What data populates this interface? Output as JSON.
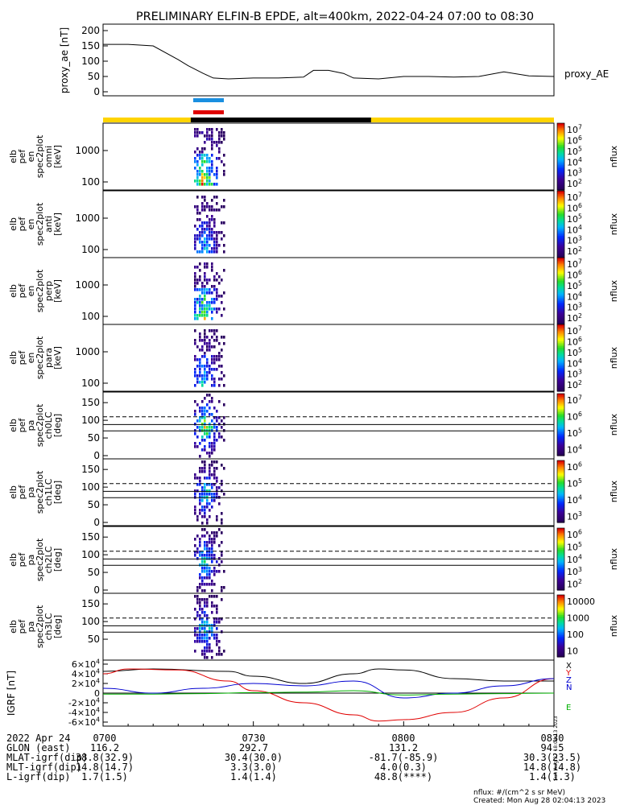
{
  "chart_data": {
    "type": "spectrogram_stack",
    "title": "PRELIMINARY ELFIN-B EPDE, alt=400km, 2022-04-24 07:00 to 08:30",
    "time_ticks": [
      "0700",
      "0730",
      "0800",
      "0830"
    ],
    "ae_panel": {
      "ylabel": "proxy_ae [nT]",
      "series_label": "proxy_AE",
      "yticks": [
        "0",
        "50",
        "100",
        "150",
        "200"
      ],
      "ylim": [
        0,
        200
      ],
      "t_min": [
        0,
        5,
        10,
        15,
        17,
        20,
        22,
        25,
        30,
        35,
        40,
        42,
        45,
        48,
        50,
        55,
        60,
        65,
        70,
        75,
        80,
        85,
        90
      ],
      "values": [
        155,
        155,
        150,
        105,
        85,
        60,
        45,
        42,
        45,
        45,
        48,
        70,
        70,
        60,
        45,
        42,
        50,
        50,
        48,
        50,
        65,
        52,
        50
      ]
    },
    "status_bar": {
      "segments": [
        "yellow",
        "black",
        "yellow"
      ],
      "t_min": [
        0,
        17.5,
        53.5,
        90
      ]
    },
    "science_marks": {
      "colors": [
        "#1a8fe0",
        "#e00000"
      ]
    },
    "energy_panels": [
      {
        "ylabel": [
          "elb",
          "pef",
          "en",
          "spec2plot",
          "omni",
          "[keV]"
        ],
        "yticks": [
          "100",
          "1000"
        ],
        "cbar_ticks": [
          "10^7",
          "10^6",
          "10^5",
          "10^4",
          "10^3",
          "10^2"
        ],
        "cbar_label": "nflux"
      },
      {
        "ylabel": [
          "elb",
          "pef",
          "en",
          "spec2plot",
          "anti",
          "[keV]"
        ],
        "yticks": [
          "100",
          "1000"
        ],
        "cbar_ticks": [
          "10^7",
          "10^6",
          "10^5",
          "10^4",
          "10^3",
          "10^2"
        ],
        "cbar_label": "nflux"
      },
      {
        "ylabel": [
          "elb",
          "pef",
          "en",
          "spec2plot",
          "perp",
          "[keV]"
        ],
        "yticks": [
          "100",
          "1000"
        ],
        "cbar_ticks": [
          "10^7",
          "10^6",
          "10^5",
          "10^4",
          "10^3",
          "10^2"
        ],
        "cbar_label": "nflux"
      },
      {
        "ylabel": [
          "elb",
          "pef",
          "en",
          "spec2plot",
          "para",
          "[keV]"
        ],
        "yticks": [
          "100",
          "1000"
        ],
        "cbar_ticks": [
          "10^7",
          "10^6",
          "10^5",
          "10^4",
          "10^3",
          "10^2"
        ],
        "cbar_label": "nflux"
      }
    ],
    "pa_panels": [
      {
        "ylabel": [
          "elb",
          "pef",
          "pa",
          "spec2plot",
          "ch0LC",
          "[deg]"
        ],
        "yticks": [
          "0",
          "50",
          "100",
          "150"
        ],
        "cbar_ticks": [
          "10^7",
          "10^6",
          "10^5",
          "10^4"
        ],
        "cbar_label": "nflux"
      },
      {
        "ylabel": [
          "elb",
          "pef",
          "pa",
          "spec2plot",
          "ch1LC",
          "[deg]"
        ],
        "yticks": [
          "0",
          "50",
          "100",
          "150"
        ],
        "cbar_ticks": [
          "10^6",
          "10^5",
          "10^4",
          "10^3"
        ],
        "cbar_label": "nflux"
      },
      {
        "ylabel": [
          "elb",
          "pef",
          "pa",
          "spec2plot",
          "ch2LC",
          "[deg]"
        ],
        "yticks": [
          "0",
          "50",
          "100",
          "150"
        ],
        "cbar_ticks": [
          "10^6",
          "10^5",
          "10^4",
          "10^3",
          "10^2"
        ],
        "cbar_label": "nflux"
      },
      {
        "ylabel": [
          "elb",
          "pef",
          "pa",
          "spec2plot",
          "ch3LC",
          "[deg]"
        ],
        "yticks": [
          "50",
          "100",
          "150"
        ],
        "cbar_ticks": [
          "10000",
          "1000",
          "100",
          "10"
        ],
        "cbar_label": "nflux"
      }
    ],
    "pa_lines": {
      "dashed_deg": 110,
      "solid_deg": [
        88,
        70
      ]
    },
    "igrf_panel": {
      "ylabel": "IGRF [nT]",
      "yticks": [
        "6x10^4",
        "4x10^4",
        "2x10^4",
        "0",
        "-2x10^4",
        "-4x10^4",
        "-6x10^4"
      ],
      "ylim": [
        -60000,
        60000
      ],
      "legend": [
        "X",
        "Y",
        "Z",
        "N",
        "E"
      ],
      "series": [
        {
          "component": "black",
          "color": "#000000",
          "t_min": [
            0,
            10,
            25,
            30,
            40,
            50,
            55,
            60,
            70,
            80,
            90
          ],
          "values": [
            45000,
            50000,
            45000,
            35000,
            20000,
            40000,
            50000,
            48000,
            30000,
            25000,
            25000
          ]
        },
        {
          "component": "red",
          "color": "#e00000",
          "t_min": [
            0,
            5,
            15,
            25,
            30,
            40,
            50,
            55,
            60,
            70,
            80,
            90
          ],
          "values": [
            40000,
            50000,
            48000,
            25000,
            5000,
            -20000,
            -45000,
            -58000,
            -55000,
            -40000,
            -10000,
            30000
          ]
        },
        {
          "component": "blue",
          "color": "#0000d0",
          "t_min": [
            0,
            10,
            20,
            30,
            40,
            50,
            60,
            70,
            80,
            90
          ],
          "values": [
            10000,
            0,
            10000,
            20000,
            15000,
            25000,
            -10000,
            0,
            15000,
            30000
          ]
        },
        {
          "component": "green",
          "color": "#00b000",
          "t_min": [
            0,
            10,
            20,
            30,
            40,
            50,
            60,
            70,
            80,
            90
          ],
          "values": [
            -2000,
            -2000,
            -1000,
            1000,
            2000,
            5000,
            -4000,
            -2000,
            -1000,
            0
          ]
        }
      ]
    },
    "orbit_table": {
      "date": "2022 Apr 24",
      "columns": [
        "0700",
        "0730",
        "0800",
        "0830"
      ],
      "rows": [
        {
          "label": "GLON (east)",
          "values": [
            "116.2",
            "292.7",
            "131.2",
            "94.5"
          ]
        },
        {
          "label": "MLAT-igrf(dip)",
          "values": [
            "38.8(32.9)",
            "30.4(30.0)",
            "-81.7(-85.9)",
            "30.3(23.5)"
          ]
        },
        {
          "label": "MLT-igrf(dip)",
          "values": [
            "14.8(14.7)",
            "3.3(3.0)",
            "4.0(0.3)",
            "14.8(14.8)"
          ]
        },
        {
          "label": "L-igrf(dip)",
          "values": [
            "1.7(1.5)",
            "1.4(1.4)",
            "48.8(****)",
            "1.4(1.3)"
          ]
        }
      ]
    },
    "footer": {
      "units": "nflux: #/(cm^2 s sr MeV)",
      "created": "Created: Mon Aug 28 02:04:13 2023",
      "side_stamp": "Sun Aug 27 18:04:13 2023"
    }
  }
}
